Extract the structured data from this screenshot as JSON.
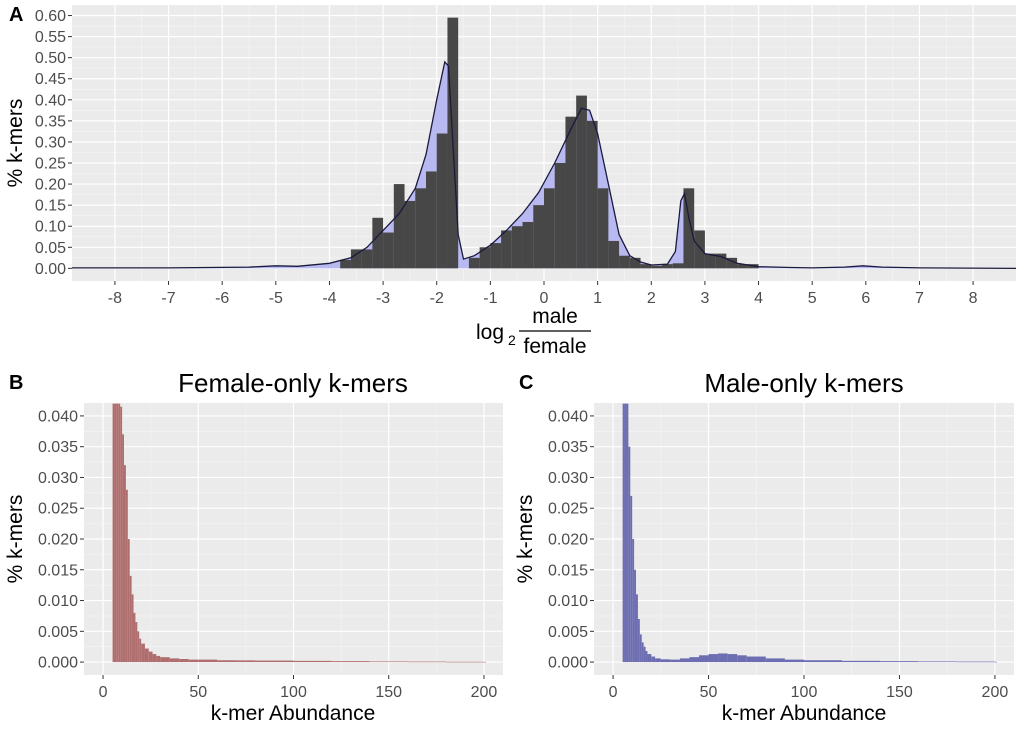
{
  "panels": {
    "a": {
      "letter": "A",
      "ylabel": "% k-mers",
      "xlabel_prefix": "log",
      "xlabel_sub": "2",
      "xlabel_num": "male",
      "xlabel_den": "female"
    },
    "b": {
      "letter": "B",
      "title": "Female-only k-mers",
      "xlabel": "k-mer Abundance",
      "ylabel": "% k-mers"
    },
    "c": {
      "letter": "C",
      "title": "Male-only k-mers",
      "xlabel": "k-mer Abundance",
      "ylabel": "% k-mers"
    }
  },
  "chart_data": [
    {
      "type": "bar",
      "panel": "A",
      "description": "histogram with density overlay",
      "xlim": [
        -8.8,
        8.8
      ],
      "ylim": [
        -0.03,
        0.625
      ],
      "x_ticks": [
        -8,
        -7,
        -6,
        -5,
        -4,
        -3,
        -2,
        -1,
        0,
        1,
        2,
        3,
        4,
        5,
        6,
        7,
        8
      ],
      "x_tick_labels": [
        "-8",
        "-7",
        "-6",
        "-5",
        "-4",
        "-3",
        "-2",
        "-1",
        "0",
        "1",
        "2",
        "3",
        "4",
        "5",
        "6",
        "7",
        "8"
      ],
      "y_ticks": [
        0,
        0.05,
        0.1,
        0.15,
        0.2,
        0.25,
        0.3,
        0.35,
        0.4,
        0.45,
        0.5,
        0.55,
        0.6
      ],
      "y_tick_labels": [
        "0.00",
        "0.05",
        "0.10",
        "0.15",
        "0.20",
        "0.25",
        "0.30",
        "0.35",
        "0.40",
        "0.45",
        "0.50",
        "0.55",
        "0.60"
      ],
      "bin_width": 0.2,
      "bars": [
        {
          "x": -3.7,
          "y": 0.02
        },
        {
          "x": -3.5,
          "y": 0.045
        },
        {
          "x": -3.3,
          "y": 0.045
        },
        {
          "x": -3.1,
          "y": 0.12
        },
        {
          "x": -2.9,
          "y": 0.085
        },
        {
          "x": -2.7,
          "y": 0.2
        },
        {
          "x": -2.5,
          "y": 0.16
        },
        {
          "x": -2.3,
          "y": 0.19
        },
        {
          "x": -2.1,
          "y": 0.23
        },
        {
          "x": -1.9,
          "y": 0.32
        },
        {
          "x": -1.7,
          "y": 0.595
        },
        {
          "x": -1.3,
          "y": 0.025
        },
        {
          "x": -1.1,
          "y": 0.05
        },
        {
          "x": -0.9,
          "y": 0.06
        },
        {
          "x": -0.7,
          "y": 0.09
        },
        {
          "x": -0.5,
          "y": 0.1
        },
        {
          "x": -0.3,
          "y": 0.11
        },
        {
          "x": -0.1,
          "y": 0.15
        },
        {
          "x": 0.1,
          "y": 0.19
        },
        {
          "x": 0.3,
          "y": 0.25
        },
        {
          "x": 0.5,
          "y": 0.36
        },
        {
          "x": 0.7,
          "y": 0.41
        },
        {
          "x": 0.9,
          "y": 0.35
        },
        {
          "x": 1.1,
          "y": 0.19
        },
        {
          "x": 1.3,
          "y": 0.065
        },
        {
          "x": 1.5,
          "y": 0.03
        },
        {
          "x": 1.7,
          "y": 0.025
        },
        {
          "x": 1.9,
          "y": 0.01
        },
        {
          "x": 2.1,
          "y": 0.006
        },
        {
          "x": 2.3,
          "y": 0.01
        },
        {
          "x": 2.5,
          "y": 0.012
        },
        {
          "x": 2.7,
          "y": 0.19
        },
        {
          "x": 2.9,
          "y": 0.09
        },
        {
          "x": 3.1,
          "y": 0.035
        },
        {
          "x": 3.3,
          "y": 0.035
        },
        {
          "x": 3.5,
          "y": 0.025
        },
        {
          "x": 3.7,
          "y": 0.01
        },
        {
          "x": 3.9,
          "y": 0.01
        }
      ],
      "density": [
        [
          -8.8,
          0.001
        ],
        [
          -7.0,
          0.001
        ],
        [
          -5.5,
          0.003
        ],
        [
          -5.0,
          0.006
        ],
        [
          -4.6,
          0.005
        ],
        [
          -4.0,
          0.012
        ],
        [
          -3.6,
          0.025
        ],
        [
          -3.3,
          0.05
        ],
        [
          -3.0,
          0.09
        ],
        [
          -2.7,
          0.13
        ],
        [
          -2.4,
          0.19
        ],
        [
          -2.2,
          0.27
        ],
        [
          -2.0,
          0.4
        ],
        [
          -1.85,
          0.49
        ],
        [
          -1.78,
          0.48
        ],
        [
          -1.7,
          0.3
        ],
        [
          -1.6,
          0.08
        ],
        [
          -1.5,
          0.022
        ],
        [
          -1.3,
          0.03
        ],
        [
          -1.0,
          0.055
        ],
        [
          -0.7,
          0.09
        ],
        [
          -0.4,
          0.13
        ],
        [
          -0.1,
          0.18
        ],
        [
          0.2,
          0.25
        ],
        [
          0.5,
          0.33
        ],
        [
          0.7,
          0.38
        ],
        [
          0.85,
          0.375
        ],
        [
          1.0,
          0.32
        ],
        [
          1.2,
          0.2
        ],
        [
          1.4,
          0.08
        ],
        [
          1.6,
          0.03
        ],
        [
          1.8,
          0.015
        ],
        [
          2.0,
          0.008
        ],
        [
          2.3,
          0.01
        ],
        [
          2.45,
          0.04
        ],
        [
          2.55,
          0.16
        ],
        [
          2.62,
          0.178
        ],
        [
          2.7,
          0.12
        ],
        [
          2.8,
          0.065
        ],
        [
          3.0,
          0.035
        ],
        [
          3.3,
          0.028
        ],
        [
          3.6,
          0.012
        ],
        [
          4.0,
          0.004
        ],
        [
          4.6,
          0.002
        ],
        [
          5.0,
          0.001
        ],
        [
          5.6,
          0.003
        ],
        [
          5.95,
          0.006
        ],
        [
          6.3,
          0.003
        ],
        [
          7.0,
          0.001
        ],
        [
          8.8,
          0.0
        ]
      ],
      "colors": {
        "bar": "#474747",
        "fill": "#b9b9f1",
        "line": "#1a1a3d"
      },
      "grid": true
    },
    {
      "type": "bar",
      "panel": "B",
      "title": "Female-only k-mers",
      "xlabel": "k-mer Abundance",
      "ylabel": "% k-mers",
      "xlim": [
        -10,
        210
      ],
      "ylim": [
        -0.0021,
        0.0421
      ],
      "x_ticks": [
        0,
        50,
        100,
        150,
        200
      ],
      "x_tick_labels": [
        "0",
        "50",
        "100",
        "150",
        "200"
      ],
      "y_ticks": [
        0,
        0.005,
        0.01,
        0.015,
        0.02,
        0.025,
        0.03,
        0.035,
        0.04
      ],
      "y_tick_labels": [
        "0.000",
        "0.005",
        "0.010",
        "0.015",
        "0.020",
        "0.025",
        "0.030",
        "0.035",
        "0.040"
      ],
      "x": [
        5,
        6,
        7,
        8,
        9,
        10,
        11,
        12,
        13,
        14,
        15,
        16,
        17,
        18,
        19,
        20,
        22,
        24,
        26,
        28,
        30,
        35,
        40,
        45,
        50,
        60,
        70,
        80,
        100,
        120,
        140,
        160,
        180,
        200
      ],
      "values": [
        0.042,
        0.042,
        0.042,
        0.042,
        0.0415,
        0.037,
        0.032,
        0.028,
        0.02,
        0.014,
        0.011,
        0.008,
        0.0065,
        0.005,
        0.0038,
        0.003,
        0.0022,
        0.0017,
        0.0013,
        0.001,
        0.0008,
        0.0006,
        0.0005,
        0.0004,
        0.0004,
        0.0003,
        0.00028,
        0.00025,
        0.0002,
        0.00015,
        0.0001,
        8e-05,
        5e-05,
        4e-05
      ],
      "color": "#b06f6f",
      "grid": true
    },
    {
      "type": "bar",
      "panel": "C",
      "title": "Male-only k-mers",
      "xlabel": "k-mer Abundance",
      "ylabel": "% k-mers",
      "xlim": [
        -10,
        210
      ],
      "ylim": [
        -0.0021,
        0.0421
      ],
      "x_ticks": [
        0,
        50,
        100,
        150,
        200
      ],
      "x_tick_labels": [
        "0",
        "50",
        "100",
        "150",
        "200"
      ],
      "y_ticks": [
        0,
        0.005,
        0.01,
        0.015,
        0.02,
        0.025,
        0.03,
        0.035,
        0.04
      ],
      "y_tick_labels": [
        "0.000",
        "0.005",
        "0.010",
        "0.015",
        "0.020",
        "0.025",
        "0.030",
        "0.035",
        "0.040"
      ],
      "x": [
        5,
        6,
        7,
        8,
        9,
        10,
        11,
        12,
        13,
        14,
        15,
        16,
        17,
        18,
        20,
        22,
        25,
        30,
        35,
        40,
        45,
        50,
        55,
        60,
        65,
        70,
        80,
        90,
        100,
        120,
        140,
        160,
        180,
        200
      ],
      "values": [
        0.042,
        0.042,
        0.042,
        0.035,
        0.027,
        0.02,
        0.015,
        0.011,
        0.007,
        0.0045,
        0.0032,
        0.0025,
        0.0018,
        0.0013,
        0.0009,
        0.0006,
        0.00045,
        0.0004,
        0.0006,
        0.0008,
        0.0011,
        0.0013,
        0.0014,
        0.0013,
        0.0011,
        0.0009,
        0.0006,
        0.0004,
        0.0003,
        0.0002,
        0.00015,
        0.0001,
        8e-05,
        5e-05
      ],
      "color": "#6d6db2",
      "grid": true
    }
  ]
}
